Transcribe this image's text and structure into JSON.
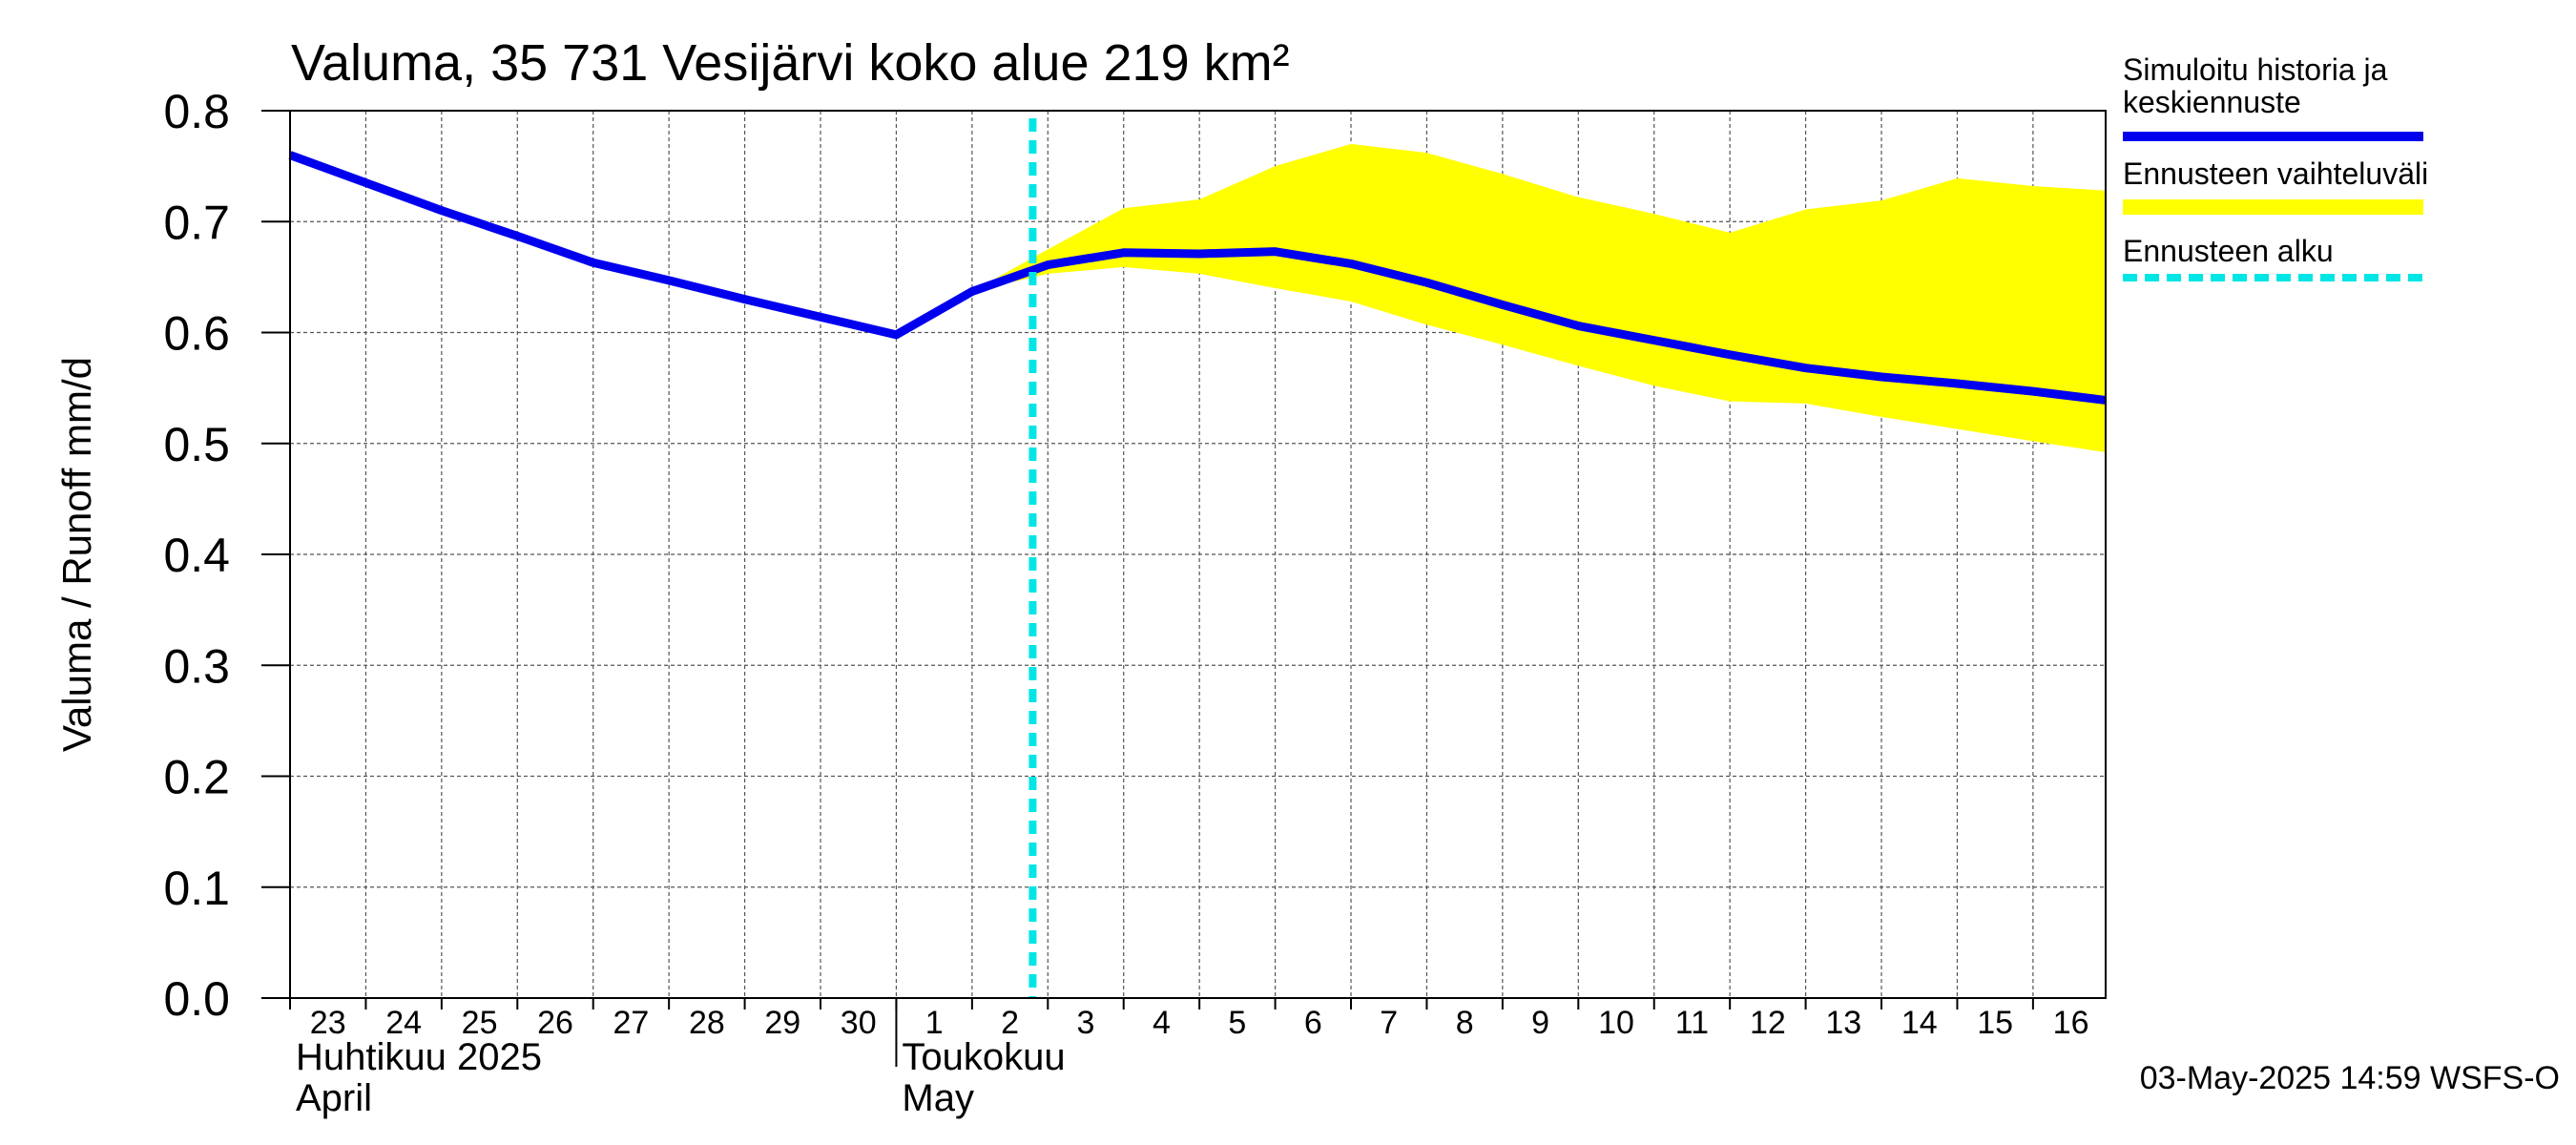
{
  "chart_data": {
    "type": "line",
    "title": "Valuma, 35 731 Vesijärvi koko alue 219 km²",
    "ylabel": "Valuma / Runoff     mm/d",
    "ylim": [
      0.0,
      0.8
    ],
    "yticks": [
      0.0,
      0.1,
      0.2,
      0.3,
      0.4,
      0.5,
      0.6,
      0.7,
      0.8
    ],
    "ytick_labels": [
      "0.0",
      "0.1",
      "0.2",
      "0.3",
      "0.4",
      "0.5",
      "0.6",
      "0.7",
      "0.8"
    ],
    "xlim": [
      "2025-04-23",
      "2025-05-16T23:00"
    ],
    "x_tick_labels": [
      "23",
      "24",
      "25",
      "26",
      "27",
      "28",
      "29",
      "30",
      "1",
      "2",
      "3",
      "4",
      "5",
      "6",
      "7",
      "8",
      "9",
      "10",
      "11",
      "12",
      "13",
      "14",
      "15",
      "16"
    ],
    "month_labels": [
      {
        "fi": "Huhtikuu  2025",
        "en": "April"
      },
      {
        "fi": "Toukokuu",
        "en": "May"
      }
    ],
    "grid": true,
    "legend_position": "right",
    "legend": [
      {
        "label_lines": [
          "Simuloitu historia ja",
          "keskiennuste"
        ],
        "color": "#0000ee",
        "style": "solid"
      },
      {
        "label_lines": [
          "Ennusteen vaihteluväli"
        ],
        "color": "#ffff00",
        "style": "band"
      },
      {
        "label_lines": [
          "Ennusteen alku"
        ],
        "color": "#00e5e5",
        "style": "dashed"
      }
    ],
    "forecast_start": "2025-05-03",
    "series": [
      {
        "name": "Simuloitu historia ja keskiennuste",
        "color": "#0000ee",
        "x": [
          "2025-04-23",
          "2025-04-24",
          "2025-04-25",
          "2025-04-26",
          "2025-04-27",
          "2025-04-28",
          "2025-04-29",
          "2025-04-30",
          "2025-05-01",
          "2025-05-02",
          "2025-05-03",
          "2025-05-04",
          "2025-05-05",
          "2025-05-06",
          "2025-05-07",
          "2025-05-08",
          "2025-05-09",
          "2025-05-10",
          "2025-05-11",
          "2025-05-12",
          "2025-05-13",
          "2025-05-14",
          "2025-05-15",
          "2025-05-16",
          "2025-05-16T23:00"
        ],
        "y": [
          0.76,
          0.735,
          0.71,
          0.687,
          0.663,
          0.647,
          0.63,
          0.614,
          0.598,
          0.637,
          0.661,
          0.672,
          0.671,
          0.673,
          0.662,
          0.645,
          0.625,
          0.606,
          0.593,
          0.58,
          0.568,
          0.56,
          0.554,
          0.547,
          0.539
        ]
      },
      {
        "name": "Ennusteen vaihteluväli",
        "color": "#ffff00",
        "type": "band",
        "x": [
          "2025-05-02",
          "2025-05-03",
          "2025-05-04",
          "2025-05-05",
          "2025-05-06",
          "2025-05-07",
          "2025-05-08",
          "2025-05-09",
          "2025-05-10",
          "2025-05-11",
          "2025-05-12",
          "2025-05-13",
          "2025-05-14",
          "2025-05-15",
          "2025-05-16",
          "2025-05-16T23:00"
        ],
        "upper": [
          0.637,
          0.675,
          0.712,
          0.72,
          0.75,
          0.77,
          0.762,
          0.743,
          0.722,
          0.707,
          0.69,
          0.711,
          0.719,
          0.739,
          0.732,
          0.728
        ],
        "lower": [
          0.637,
          0.653,
          0.659,
          0.653,
          0.64,
          0.628,
          0.607,
          0.589,
          0.57,
          0.552,
          0.538,
          0.536,
          0.524,
          0.513,
          0.502,
          0.492
        ]
      }
    ]
  },
  "footer": {
    "timestamp": "03-May-2025 14:59 WSFS-O"
  }
}
